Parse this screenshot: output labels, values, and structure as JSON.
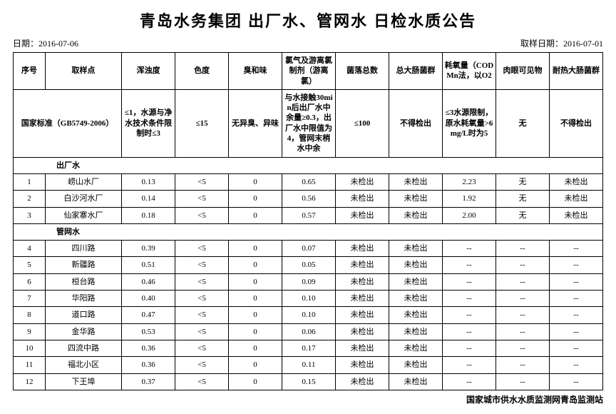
{
  "title": "青岛水务集团 出厂水、管网水 日检水质公告",
  "date_label": "日期：",
  "date_value": "2016-07-06",
  "sample_date_label": "取样日期：",
  "sample_date_value": "2016-07-01",
  "headers": [
    "序号",
    "取样点",
    "浑浊度",
    "色度",
    "臭和味",
    "氯气及游离氯制剂（游离氯）",
    "菌落总数",
    "总大肠菌群",
    "耗氧量（CODMn法，以O2",
    "肉眼可见物",
    "耐热大肠菌群"
  ],
  "standard_label": "国家标准（GB5749-2006）",
  "standards": [
    "≤1，水源与净水技术条件限制时≤3",
    "≤15",
    "无异臭、异味",
    "与水接触30min后出厂水中余量≥0.3，出厂水中限值为4，管网末梢水中余",
    "≤100",
    "不得检出",
    "≤3水源限制，原水耗氧量>6mg/L时为5",
    "无",
    "不得检出"
  ],
  "section1": "出厂水",
  "section2": "管网水",
  "rows1": [
    {
      "seq": "1",
      "point": "崂山水厂",
      "v": [
        "0.13",
        "<5",
        "0",
        "0.65",
        "未检出",
        "未检出",
        "2.23",
        "无",
        "未检出"
      ]
    },
    {
      "seq": "2",
      "point": "白沙河水厂",
      "v": [
        "0.14",
        "<5",
        "0",
        "0.56",
        "未检出",
        "未检出",
        "1.92",
        "无",
        "未检出"
      ]
    },
    {
      "seq": "3",
      "point": "仙家寨水厂",
      "v": [
        "0.18",
        "<5",
        "0",
        "0.57",
        "未检出",
        "未检出",
        "2.00",
        "无",
        "未检出"
      ]
    }
  ],
  "rows2": [
    {
      "seq": "4",
      "point": "四川路",
      "v": [
        "0.39",
        "<5",
        "0",
        "0.07",
        "未检出",
        "未检出",
        "--",
        "--",
        "--"
      ]
    },
    {
      "seq": "5",
      "point": "新疆路",
      "v": [
        "0.51",
        "<5",
        "0",
        "0.05",
        "未检出",
        "未检出",
        "--",
        "--",
        "--"
      ]
    },
    {
      "seq": "6",
      "point": "桓台路",
      "v": [
        "0.46",
        "<5",
        "0",
        "0.09",
        "未检出",
        "未检出",
        "--",
        "--",
        "--"
      ]
    },
    {
      "seq": "7",
      "point": "华阳路",
      "v": [
        "0.40",
        "<5",
        "0",
        "0.10",
        "未检出",
        "未检出",
        "--",
        "--",
        "--"
      ]
    },
    {
      "seq": "8",
      "point": "道口路",
      "v": [
        "0.47",
        "<5",
        "0",
        "0.10",
        "未检出",
        "未检出",
        "--",
        "--",
        "--"
      ]
    },
    {
      "seq": "9",
      "point": "金华路",
      "v": [
        "0.53",
        "<5",
        "0",
        "0.06",
        "未检出",
        "未检出",
        "--",
        "--",
        "--"
      ]
    },
    {
      "seq": "10",
      "point": "四流中路",
      "v": [
        "0.36",
        "<5",
        "0",
        "0.17",
        "未检出",
        "未检出",
        "--",
        "--",
        "--"
      ]
    },
    {
      "seq": "11",
      "point": "福北小区",
      "v": [
        "0.36",
        "<5",
        "0",
        "0.11",
        "未检出",
        "未检出",
        "--",
        "--",
        "--"
      ]
    },
    {
      "seq": "12",
      "point": "下王埠",
      "v": [
        "0.37",
        "<5",
        "0",
        "0.15",
        "未检出",
        "未检出",
        "--",
        "--",
        "--"
      ]
    }
  ],
  "footer": "国家城市供水水质监测网青岛监测站"
}
